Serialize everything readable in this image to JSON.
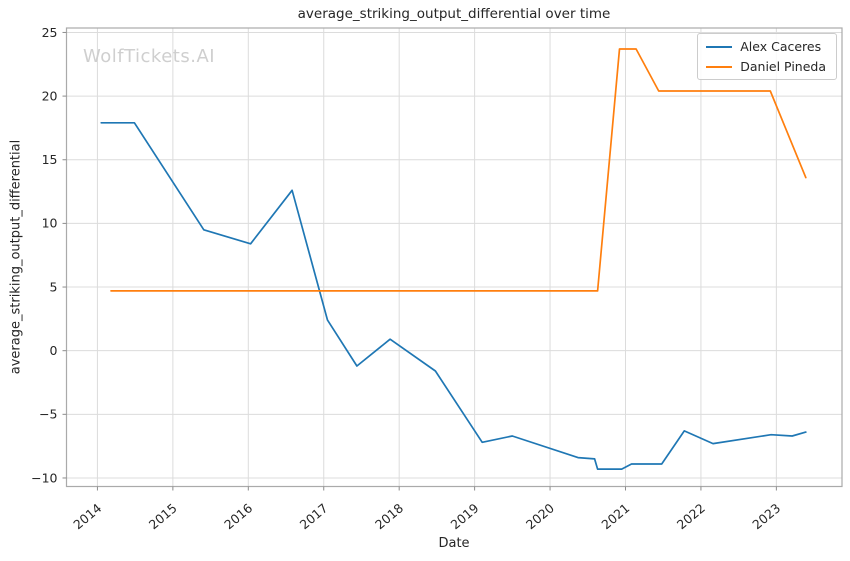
{
  "watermark": {
    "text": "WolfTickets.AI"
  },
  "chart_data": {
    "type": "line",
    "title": "average_striking_output_differential over time",
    "xlabel": "Date",
    "ylabel": "average_striking_output_differential",
    "grid": true,
    "legend_position": "upper right",
    "xlim": [
      2013.59,
      2023.87
    ],
    "ylim": [
      -10.67,
      25.35
    ],
    "x_ticks": [
      {
        "value": 2014,
        "label": "2014"
      },
      {
        "value": 2015,
        "label": "2015"
      },
      {
        "value": 2016,
        "label": "2016"
      },
      {
        "value": 2017,
        "label": "2017"
      },
      {
        "value": 2018,
        "label": "2018"
      },
      {
        "value": 2019,
        "label": "2019"
      },
      {
        "value": 2020,
        "label": "2020"
      },
      {
        "value": 2021,
        "label": "2021"
      },
      {
        "value": 2022,
        "label": "2022"
      },
      {
        "value": 2023,
        "label": "2023"
      }
    ],
    "y_ticks": [
      {
        "value": 25,
        "label": "25"
      },
      {
        "value": 20,
        "label": "20"
      },
      {
        "value": 15,
        "label": "15"
      },
      {
        "value": 10,
        "label": "10"
      },
      {
        "value": 5,
        "label": "5"
      },
      {
        "value": 0,
        "label": "0"
      },
      {
        "value": -5,
        "label": "−5"
      },
      {
        "value": -10,
        "label": "−10"
      }
    ],
    "series": [
      {
        "name": "Alex Caceres",
        "color": "#1f77b4",
        "points": [
          [
            2014.05,
            17.9
          ],
          [
            2014.49,
            17.9
          ],
          [
            2015.41,
            9.5
          ],
          [
            2016.03,
            8.4
          ],
          [
            2016.58,
            12.6
          ],
          [
            2017.05,
            2.4
          ],
          [
            2017.44,
            -1.2
          ],
          [
            2017.88,
            0.9
          ],
          [
            2018.48,
            -1.6
          ],
          [
            2019.1,
            -7.2
          ],
          [
            2019.5,
            -6.7
          ],
          [
            2020.37,
            -8.4
          ],
          [
            2020.59,
            -8.5
          ],
          [
            2020.63,
            -9.3
          ],
          [
            2020.95,
            -9.3
          ],
          [
            2021.08,
            -8.9
          ],
          [
            2021.48,
            -8.9
          ],
          [
            2021.78,
            -6.3
          ],
          [
            2022.16,
            -7.3
          ],
          [
            2022.93,
            -6.6
          ],
          [
            2023.21,
            -6.7
          ],
          [
            2023.39,
            -6.4
          ]
        ]
      },
      {
        "name": "Daniel Pineda",
        "color": "#ff7f0e",
        "points": [
          [
            2014.18,
            4.7
          ],
          [
            2020.63,
            4.7
          ],
          [
            2020.92,
            23.7
          ],
          [
            2021.14,
            23.7
          ],
          [
            2021.44,
            20.4
          ],
          [
            2022.92,
            20.4
          ],
          [
            2023.39,
            13.6
          ]
        ]
      }
    ]
  }
}
